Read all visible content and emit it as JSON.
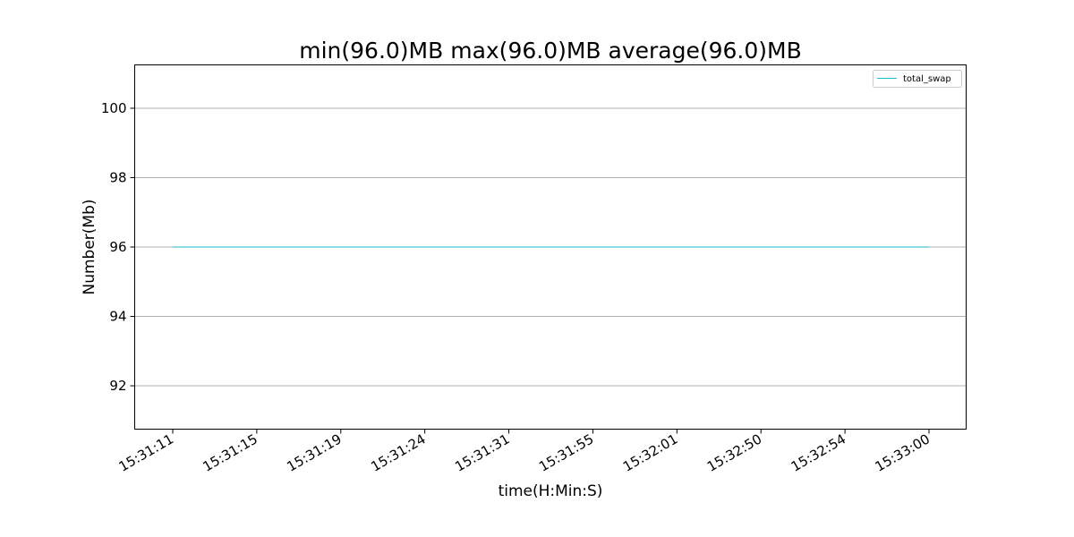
{
  "chart_data": {
    "type": "line",
    "title": "min(96.0)MB max(96.0)MB average(96.0)MB",
    "xlabel": "time(H:Min:S)",
    "ylabel": "Number(Mb)",
    "categories": [
      "15:31:11",
      "15:31:15",
      "15:31:19",
      "15:31:24",
      "15:31:31",
      "15:31:55",
      "15:32:01",
      "15:32:50",
      "15:32:54",
      "15:33:00"
    ],
    "series": [
      {
        "name": "total_swap",
        "color": "#17becf",
        "values": [
          96,
          96,
          96,
          96,
          96,
          96,
          96,
          96,
          96,
          96
        ]
      }
    ],
    "yticks": [
      92,
      94,
      96,
      98,
      100
    ],
    "ylim": [
      90.75,
      101.25
    ],
    "grid": "horizontal",
    "legend": "top-right"
  }
}
